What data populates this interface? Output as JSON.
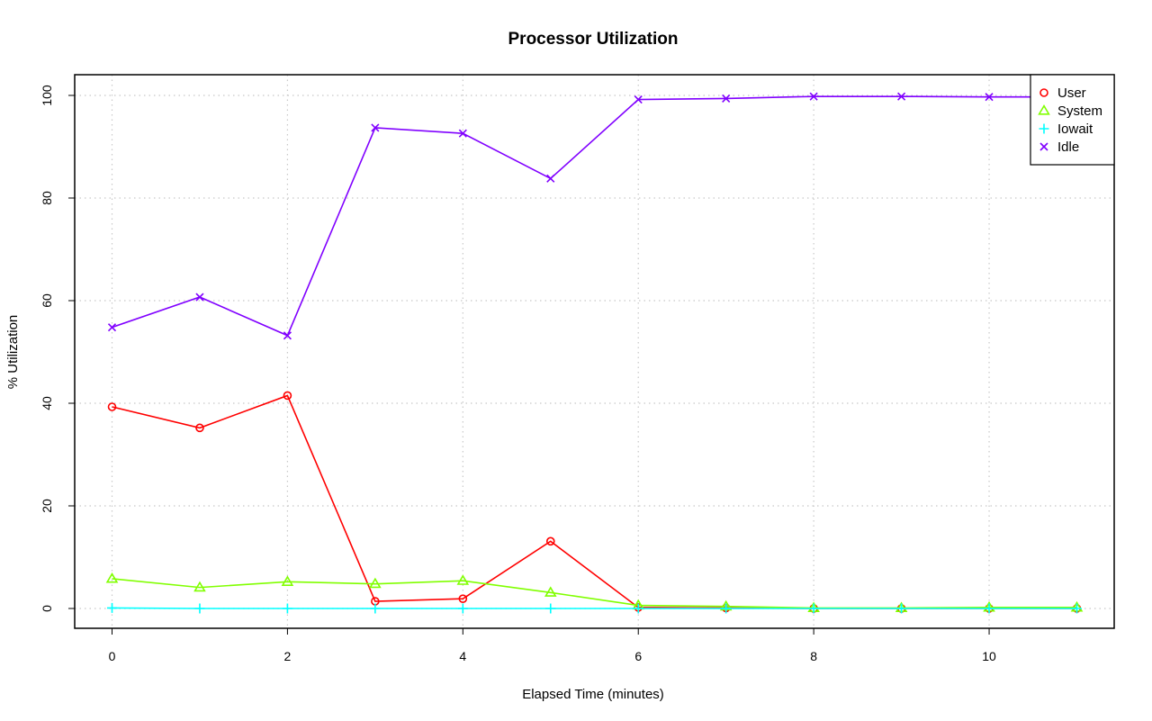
{
  "chart_data": {
    "type": "line",
    "title": "Processor Utilization",
    "xlabel": "Elapsed Time (minutes)",
    "ylabel": "% Utilization",
    "x": [
      0,
      1,
      2,
      3,
      4,
      5,
      6,
      7,
      8,
      9,
      10,
      11
    ],
    "xlim": [
      0,
      11
    ],
    "ylim": [
      0,
      100
    ],
    "xticks": [
      0,
      2,
      4,
      6,
      8,
      10
    ],
    "yticks": [
      0,
      20,
      40,
      60,
      80,
      100
    ],
    "grid": true,
    "legend_position": "top-right",
    "series": [
      {
        "name": "User",
        "marker": "circle",
        "color": "#ff0000",
        "values": [
          39.3,
          35.2,
          41.5,
          1.4,
          1.9,
          13.1,
          0.2,
          0.1,
          0.0,
          0.0,
          0.0,
          0.0
        ]
      },
      {
        "name": "System",
        "marker": "triangle",
        "color": "#80ff00",
        "values": [
          5.8,
          4.1,
          5.2,
          4.8,
          5.4,
          3.1,
          0.6,
          0.4,
          0.1,
          0.1,
          0.2,
          0.2
        ]
      },
      {
        "name": "Iowait",
        "marker": "plus",
        "color": "#00ffff",
        "values": [
          0.1,
          0.0,
          0.0,
          0.0,
          0.0,
          0.0,
          0.0,
          0.0,
          0.0,
          0.0,
          0.0,
          0.0
        ]
      },
      {
        "name": "Idle",
        "marker": "cross",
        "color": "#8000ff",
        "values": [
          54.8,
          60.7,
          53.2,
          93.7,
          92.6,
          83.8,
          99.2,
          99.4,
          99.8,
          99.8,
          99.7,
          99.7
        ]
      }
    ]
  }
}
